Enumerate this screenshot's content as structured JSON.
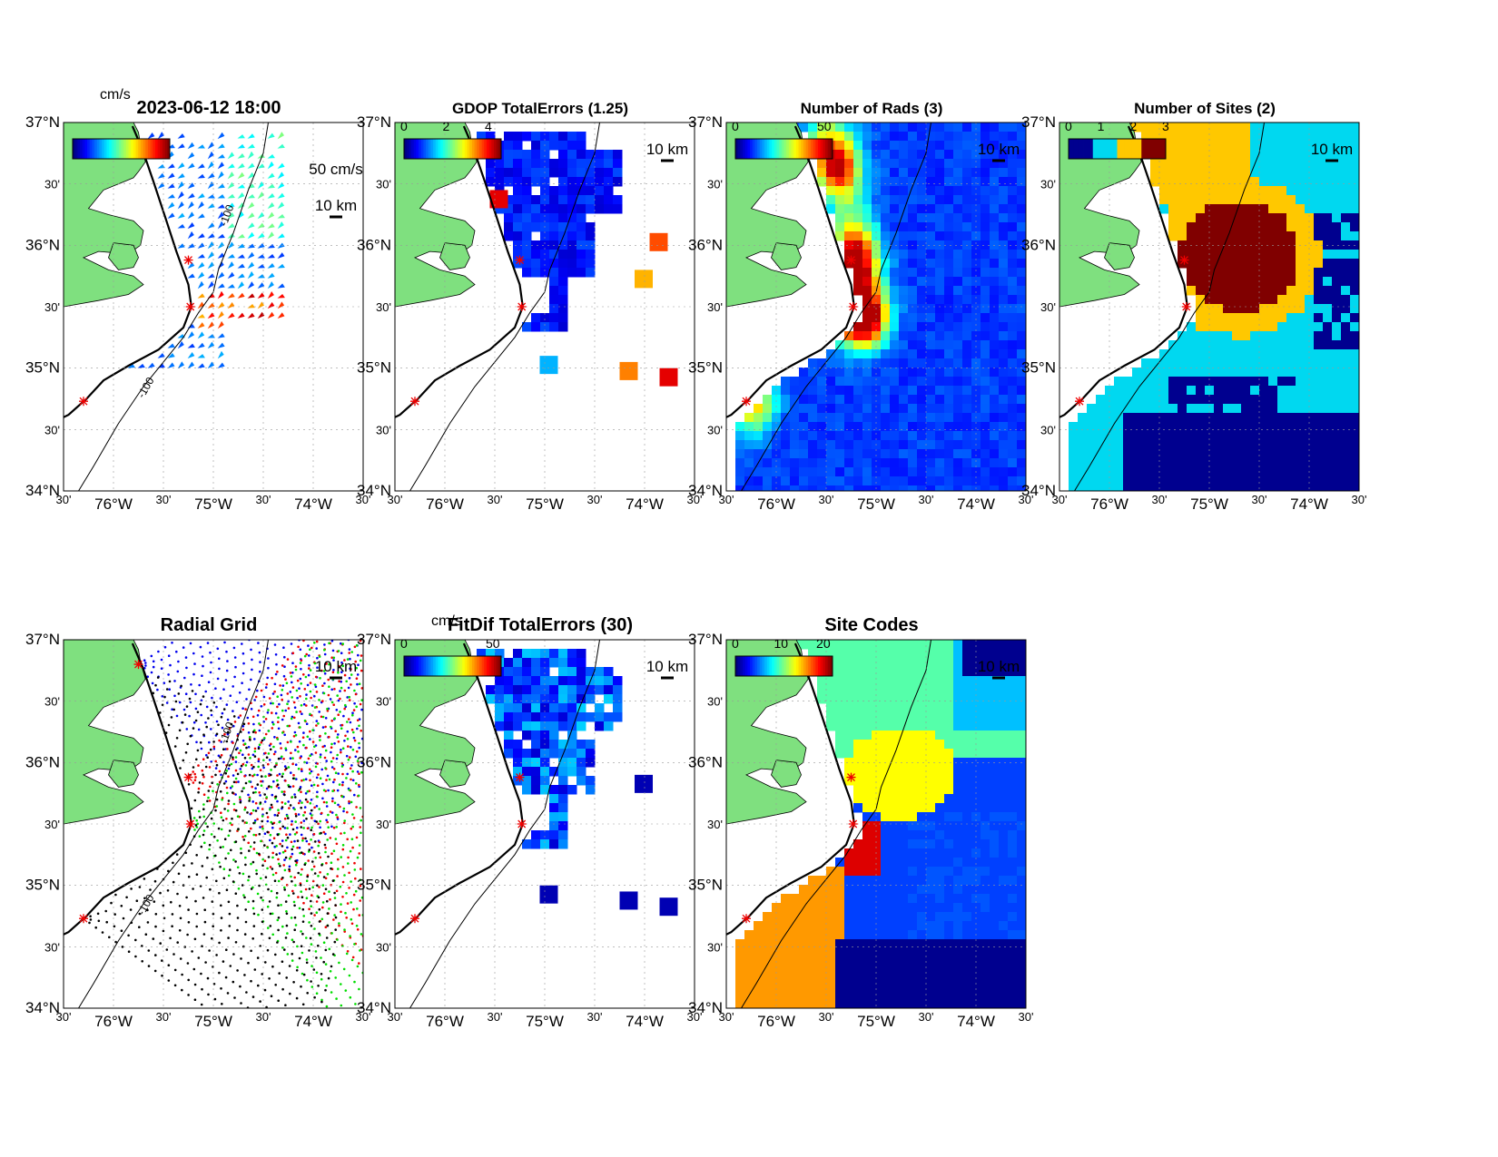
{
  "panels": [
    {
      "id": "totals",
      "title": "2023-06-12 18:00",
      "unit_label": "cm/s",
      "cbar_ticks": [],
      "extra_label": "50 cm/s",
      "scale_label": "10 km",
      "kind": "vectors"
    },
    {
      "id": "gdop",
      "title": "GDOP TotalErrors (1.25)",
      "unit_label": "",
      "cbar_ticks": [
        "0",
        "2",
        "4"
      ],
      "extra_label": "",
      "scale_label": "10 km",
      "kind": "gdop"
    },
    {
      "id": "rads",
      "title": "Number of Rads (3)",
      "unit_label": "",
      "cbar_ticks": [
        "0",
        "50"
      ],
      "extra_label": "",
      "scale_label": "10 km",
      "kind": "rads"
    },
    {
      "id": "sites",
      "title": "Number of Sites (2)",
      "unit_label": "",
      "cbar_ticks": [
        "0",
        "1",
        "2",
        "3"
      ],
      "extra_label": "",
      "scale_label": "10 km",
      "kind": "sites"
    },
    {
      "id": "radial",
      "title": "Radial Grid",
      "unit_label": "",
      "cbar_ticks": [],
      "extra_label": "",
      "scale_label": "10 km",
      "kind": "radial"
    },
    {
      "id": "fitdif",
      "title": "FitDif TotalErrors (30)",
      "unit_label": "cm/s",
      "cbar_ticks": [
        "0",
        "50"
      ],
      "extra_label": "",
      "scale_label": "10 km",
      "kind": "fitdif"
    },
    {
      "id": "codes",
      "title": "Site Codes",
      "unit_label": "",
      "cbar_ticks": [
        "0",
        "10",
        "20"
      ],
      "extra_label": "",
      "scale_label": "10 km",
      "kind": "codes"
    }
  ],
  "axes": {
    "lat_labels": [
      "37°N",
      "30'",
      "36°N",
      "30'",
      "35°N",
      "30'",
      "34°N"
    ],
    "lon_labels": [
      "30'",
      "76°W",
      "30'",
      "75°W",
      "30'",
      "74°W",
      "30'"
    ]
  },
  "contour_label": "-100",
  "contour_label_2": "-100"
}
